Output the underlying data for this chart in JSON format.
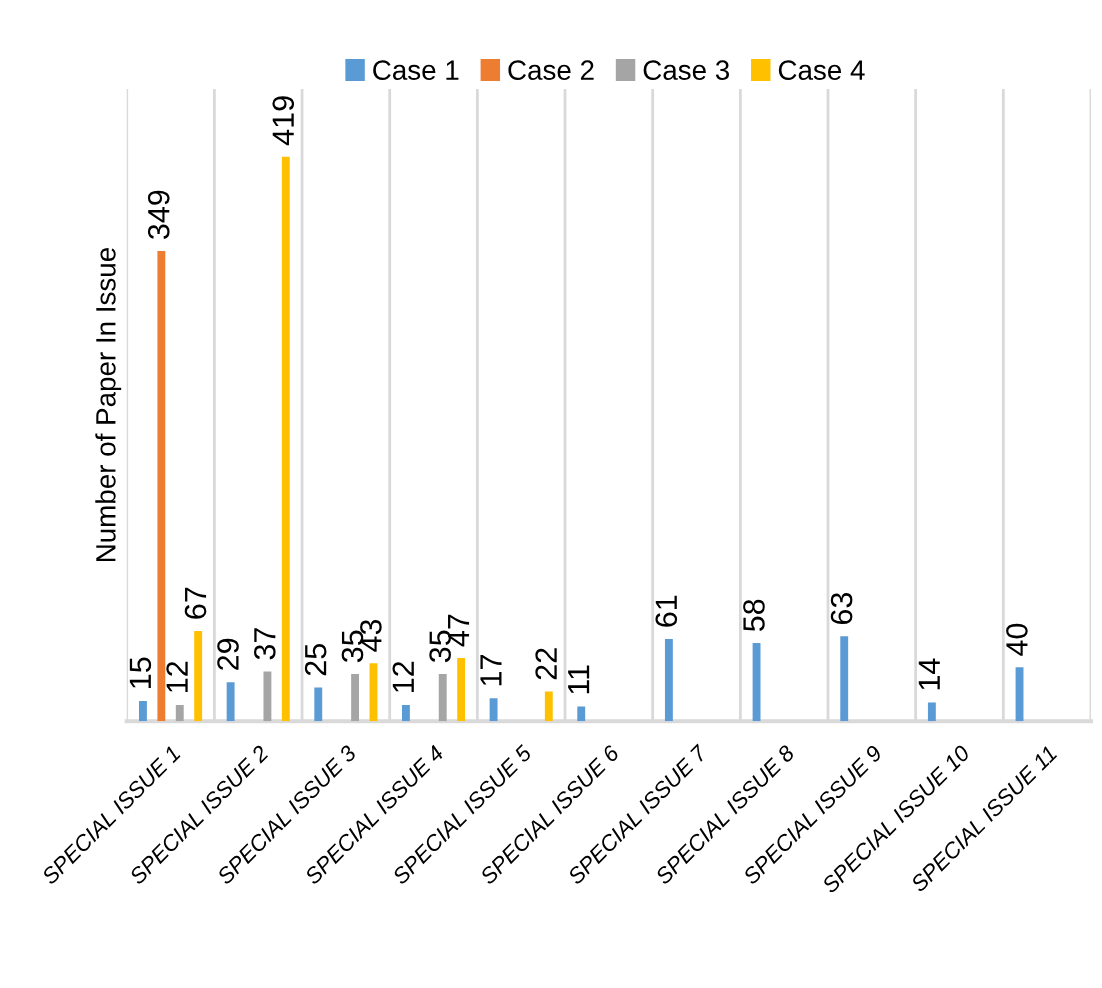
{
  "chart_data": {
    "type": "bar",
    "ylabel": "Number of Paper In Issue",
    "categories": [
      "SPECIAL ISSUE 1",
      "SPECIAL ISSUE 2",
      "SPECIAL ISSUE 3",
      "SPECIAL ISSUE 4",
      "SPECIAL ISSUE 5",
      "SPECIAL ISSUE 6",
      "SPECIAL ISSUE 7",
      "SPECIAL ISSUE 8",
      "SPECIAL ISSUE 9",
      "SPECIAL ISSUE 10",
      "SPECIAL ISSUE 11"
    ],
    "series": [
      {
        "name": "Case 1",
        "color": "#5b9bd5",
        "values": [
          15,
          29,
          25,
          12,
          17,
          11,
          61,
          58,
          63,
          14,
          40
        ]
      },
      {
        "name": "Case 2",
        "color": "#ed7d31",
        "values": [
          349,
          null,
          null,
          null,
          null,
          null,
          null,
          null,
          null,
          null,
          null
        ]
      },
      {
        "name": "Case 3",
        "color": "#a5a5a5",
        "values": [
          12,
          37,
          35,
          35,
          null,
          null,
          null,
          null,
          null,
          null,
          null
        ]
      },
      {
        "name": "Case 4",
        "color": "#ffc000",
        "values": [
          67,
          419,
          43,
          47,
          22,
          null,
          null,
          null,
          null,
          null,
          null
        ]
      }
    ],
    "data_labels": true,
    "grid": "x",
    "legend": "top"
  }
}
